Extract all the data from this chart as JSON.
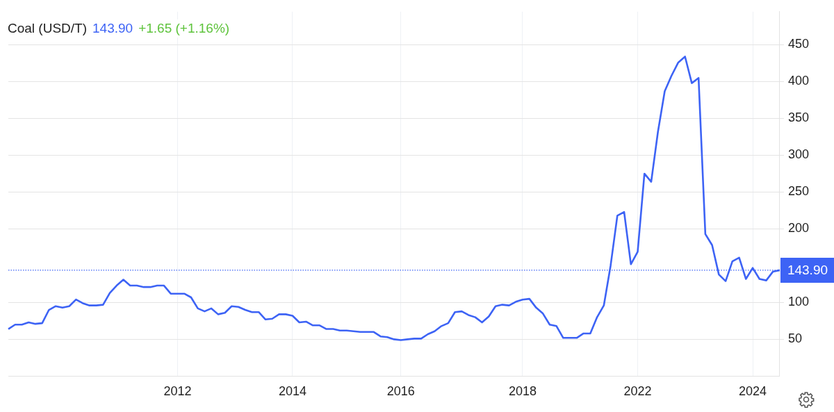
{
  "chart_data": {
    "type": "line",
    "title": "Coal (USD/T)",
    "annotations": [
      "143.90",
      "+1.65 (+1.16%)"
    ],
    "categories": [
      null,
      null,
      null,
      null,
      null,
      null,
      null,
      null,
      null,
      null,
      null,
      null,
      null,
      null,
      null,
      null,
      null,
      null,
      null,
      null,
      null,
      null,
      null,
      null,
      null,
      "2012",
      null,
      null,
      null,
      null,
      null,
      null,
      null,
      null,
      null,
      null,
      null,
      null,
      null,
      null,
      null,
      null,
      "2014",
      null,
      null,
      null,
      null,
      null,
      null,
      null,
      null,
      null,
      null,
      null,
      null,
      null,
      null,
      null,
      "2016",
      null,
      null,
      null,
      null,
      null,
      null,
      null,
      null,
      null,
      null,
      null,
      null,
      null,
      null,
      null,
      null,
      null,
      "2018",
      null,
      null,
      null,
      null,
      null,
      null,
      null,
      null,
      null,
      null,
      null,
      null,
      null,
      null,
      null,
      null,
      "2022",
      null,
      null,
      null,
      null,
      null,
      null,
      null,
      null,
      null,
      null,
      null,
      null,
      null,
      null,
      null,
      null,
      "2024",
      null,
      null,
      null,
      null
    ],
    "series": [
      {
        "color": "#3d63f5",
        "values": [
          64,
          70,
          70,
          73,
          71,
          72,
          90,
          95,
          93,
          95,
          104,
          99,
          96,
          96,
          97,
          113,
          123,
          131,
          123,
          123,
          121,
          121,
          123,
          123,
          112,
          112,
          112,
          107,
          92,
          88,
          92,
          84,
          86,
          95,
          94,
          90,
          87,
          87,
          77,
          78,
          84,
          84,
          82,
          73,
          74,
          69,
          69,
          64,
          64,
          62,
          62,
          61,
          60,
          60,
          60,
          54,
          53,
          50,
          49,
          50,
          51,
          51,
          57,
          61,
          68,
          72,
          87,
          88,
          83,
          80,
          73,
          81,
          95,
          97,
          96,
          101,
          104,
          105,
          93,
          85,
          70,
          68,
          52,
          52,
          52,
          58,
          58,
          80,
          96,
          150,
          218,
          223,
          152,
          169,
          275,
          264,
          332,
          387,
          408,
          426,
          434,
          398,
          405,
          193,
          178,
          138,
          129,
          156,
          161,
          132,
          147,
          132,
          130,
          142,
          143.9
        ]
      }
    ],
    "ylim": [
      0,
      495
    ],
    "yticks": [
      50,
      100,
      200,
      250,
      300,
      350,
      400,
      450
    ],
    "grid": true,
    "ref_lines": [
      {
        "axis": "y",
        "value": 143.9,
        "label": "143.90",
        "color": "#3d63f5",
        "line_style": "dotted"
      }
    ]
  }
}
